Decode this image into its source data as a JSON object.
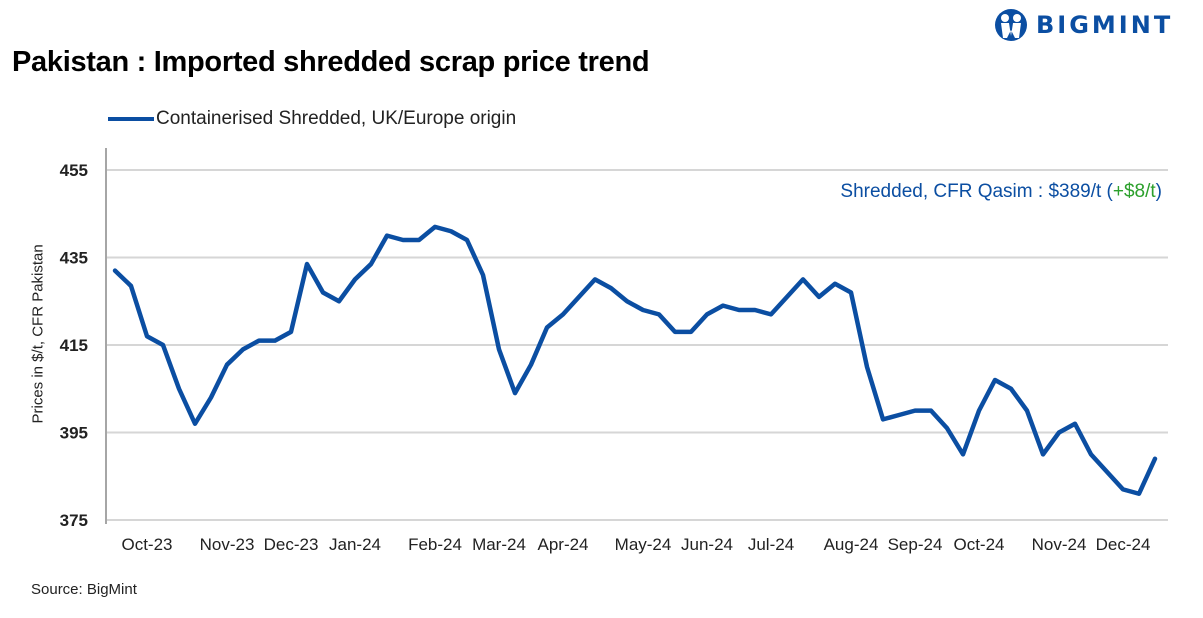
{
  "header": {
    "title": "Pakistan : Imported shredded scrap price trend",
    "logo_text": "BIGMINT"
  },
  "source": "Source: BigMint",
  "annotation": {
    "prefix": "Shredded, CFR Qasim : $389/t (",
    "change": "+$8/t",
    "suffix": ")",
    "change_color": "#2ca02c"
  },
  "chart_data": {
    "type": "line",
    "title": "Pakistan : Imported shredded scrap price trend",
    "xlabel": "",
    "ylabel": "Prices in $/t, CFR Pakistan",
    "ylim": [
      375,
      455
    ],
    "yticks": [
      375,
      395,
      415,
      435,
      455
    ],
    "grid": true,
    "legend_position": "top-left",
    "x_tick_labels": [
      {
        "label": "Oct-23",
        "index": 2
      },
      {
        "label": "Nov-23",
        "index": 7
      },
      {
        "label": "Dec-23",
        "index": 11
      },
      {
        "label": "Jan-24",
        "index": 15
      },
      {
        "label": "Feb-24",
        "index": 20
      },
      {
        "label": "Mar-24",
        "index": 24
      },
      {
        "label": "Apr-24",
        "index": 28
      },
      {
        "label": "May-24",
        "index": 33
      },
      {
        "label": "Jun-24",
        "index": 37
      },
      {
        "label": "Jul-24",
        "index": 41
      },
      {
        "label": "Aug-24",
        "index": 46
      },
      {
        "label": "Sep-24",
        "index": 50
      },
      {
        "label": "Oct-24",
        "index": 54
      },
      {
        "label": "Nov-24",
        "index": 59
      },
      {
        "label": "Dec-24",
        "index": 63
      }
    ],
    "series": [
      {
        "name": "Containerised Shredded, UK/Europe origin",
        "color": "#0b4ea2",
        "values": [
          432,
          428.5,
          417,
          415,
          405,
          397,
          403,
          410.5,
          414,
          416,
          416,
          418,
          433.5,
          427,
          425,
          430,
          433.5,
          440,
          439,
          439,
          442,
          441,
          439,
          431,
          414,
          404,
          410.5,
          419,
          422,
          426,
          430,
          428,
          425,
          423,
          422,
          418,
          418,
          422,
          424,
          423,
          423,
          422,
          426,
          430,
          426,
          429,
          427,
          410,
          398,
          399,
          400,
          400,
          396,
          390,
          400,
          407,
          405,
          400,
          390,
          395,
          397,
          390,
          386,
          382,
          381,
          389
        ]
      }
    ]
  }
}
